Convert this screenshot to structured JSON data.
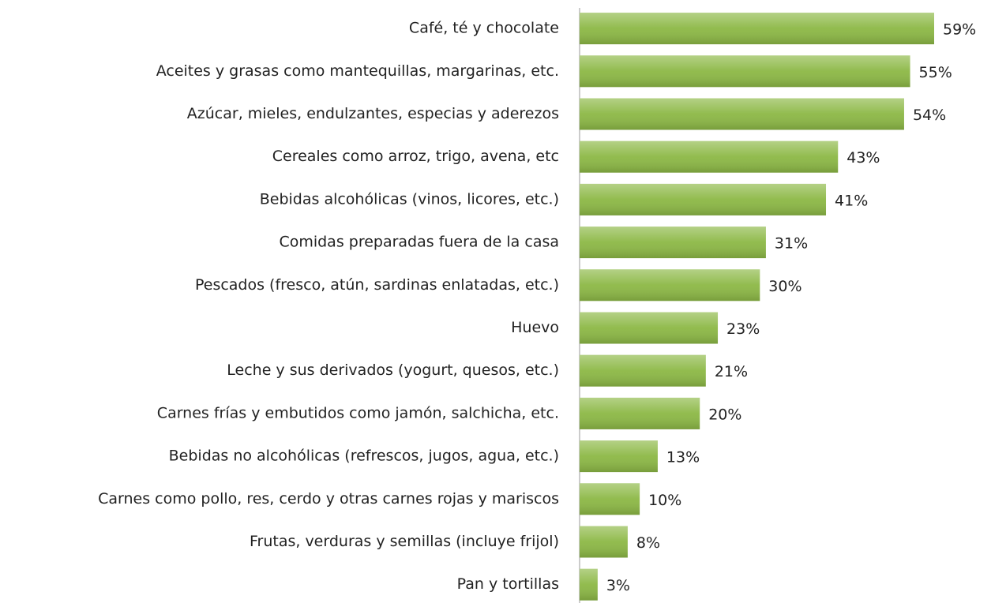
{
  "chart_data": {
    "type": "bar",
    "orientation": "horizontal",
    "color": "#8cb845",
    "categories": [
      "Café, té y chocolate",
      "Aceites y grasas como mantequillas, margarinas, etc.",
      "Azúcar, mieles, endulzantes, especias y aderezos",
      "Cereales como arroz, trigo, avena, etc",
      "Bebidas alcohólicas (vinos, licores, etc.)",
      "Comidas preparadas fuera de la casa",
      "Pescados  (fresco, atún, sardinas enlatadas, etc.)",
      "Huevo",
      "Leche y sus derivados (yogurt, quesos, etc.)",
      "Carnes frías y embutidos como jamón, salchicha, etc.",
      "Bebidas no alcohólicas (refrescos, jugos, agua, etc.)",
      "Carnes como pollo, res, cerdo y otras carnes rojas y mariscos",
      "Frutas, verduras y semillas (incluye frijol)",
      "Pan y tortillas"
    ],
    "values": [
      59,
      55,
      54,
      43,
      41,
      31,
      30,
      23,
      21,
      20,
      13,
      10,
      8,
      3
    ],
    "value_labels": [
      "59%",
      "55%",
      "54%",
      "43%",
      "41%",
      "31%",
      "30%",
      "23%",
      "21%",
      "20%",
      "13%",
      "10%",
      "8%",
      "3%"
    ]
  }
}
